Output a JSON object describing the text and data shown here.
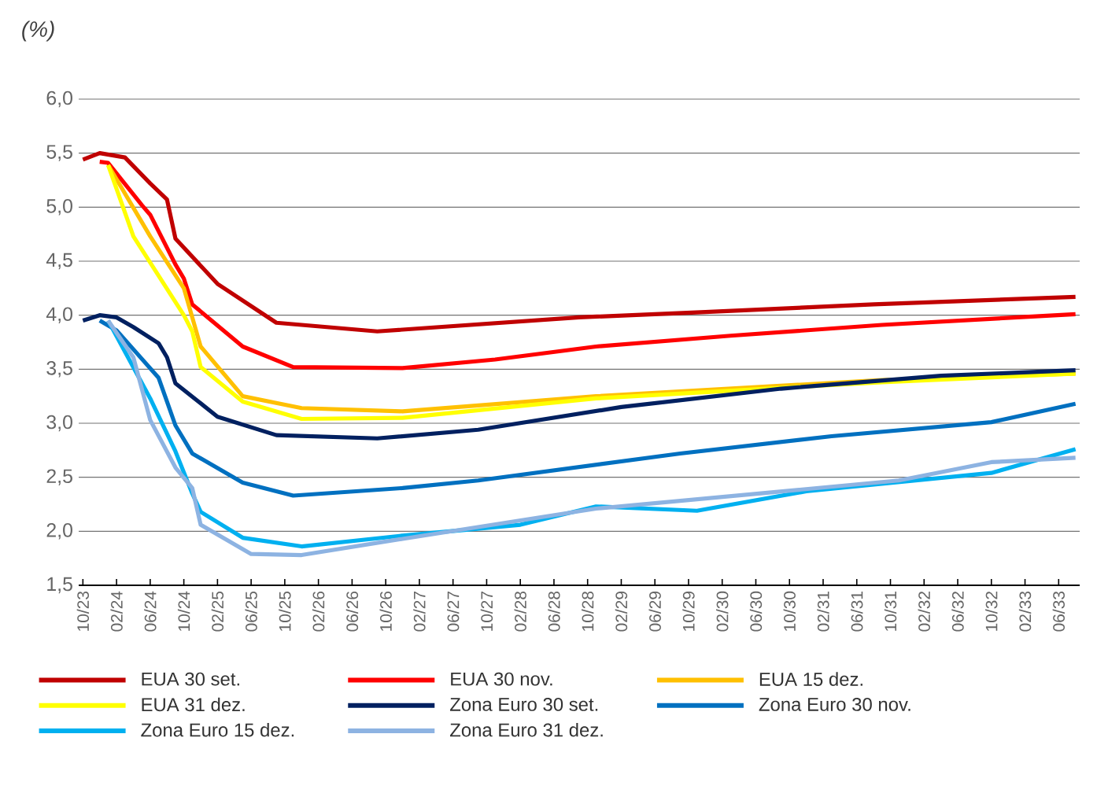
{
  "chart_data": {
    "type": "line",
    "ylabel": "(%)",
    "xlim": [
      "2023-10",
      "2033-08"
    ],
    "xticks": [
      {
        "value": "2023-10",
        "label": "10/23"
      },
      {
        "value": "2024-02",
        "label": "02/24"
      },
      {
        "value": "2024-06",
        "label": "06/24"
      },
      {
        "value": "2024-10",
        "label": "10/24"
      },
      {
        "value": "2025-02",
        "label": "02/25"
      },
      {
        "value": "2025-06",
        "label": "06/25"
      },
      {
        "value": "2025-10",
        "label": "10/25"
      },
      {
        "value": "2026-02",
        "label": "02/26"
      },
      {
        "value": "2026-06",
        "label": "06/26"
      },
      {
        "value": "2026-10",
        "label": "10/26"
      },
      {
        "value": "2027-02",
        "label": "02/27"
      },
      {
        "value": "2027-06",
        "label": "06/27"
      },
      {
        "value": "2027-10",
        "label": "10/27"
      },
      {
        "value": "2028-02",
        "label": "02/28"
      },
      {
        "value": "2028-06",
        "label": "06/28"
      },
      {
        "value": "2028-10",
        "label": "10/28"
      },
      {
        "value": "2029-02",
        "label": "02/29"
      },
      {
        "value": "2029-06",
        "label": "06/29"
      },
      {
        "value": "2029-10",
        "label": "10/29"
      },
      {
        "value": "2030-02",
        "label": "02/30"
      },
      {
        "value": "2030-06",
        "label": "06/30"
      },
      {
        "value": "2030-10",
        "label": "10/30"
      },
      {
        "value": "2031-02",
        "label": "02/31"
      },
      {
        "value": "2031-06",
        "label": "06/31"
      },
      {
        "value": "2031-10",
        "label": "10/31"
      },
      {
        "value": "2032-02",
        "label": "02/32"
      },
      {
        "value": "2032-06",
        "label": "06/32"
      },
      {
        "value": "2032-10",
        "label": "10/32"
      },
      {
        "value": "2033-02",
        "label": "02/33"
      },
      {
        "value": "2033-06",
        "label": "06/33"
      }
    ],
    "ylim": [
      1.5,
      6.0
    ],
    "yticks": [
      {
        "value": 1.5,
        "label": "1,5"
      },
      {
        "value": 2.0,
        "label": "2,0"
      },
      {
        "value": 2.5,
        "label": "2,5"
      },
      {
        "value": 3.0,
        "label": "3,0"
      },
      {
        "value": 3.5,
        "label": "3,5"
      },
      {
        "value": 4.0,
        "label": "4,0"
      },
      {
        "value": 4.5,
        "label": "4,5"
      },
      {
        "value": 5.0,
        "label": "5,0"
      },
      {
        "value": 5.5,
        "label": "5,5"
      },
      {
        "value": 6.0,
        "label": "6,0"
      }
    ],
    "grid": "y",
    "legend": "bottom",
    "series": [
      {
        "name": "EUA 30 set.",
        "color": "#c00000",
        "x": [
          "2023-10",
          "2023-12",
          "2024-03",
          "2024-06",
          "2024-08",
          "2024-09",
          "2025-02",
          "2025-09",
          "2026-09",
          "2028-09",
          "2029-12",
          "2031-08",
          "2033-08"
        ],
        "values": [
          5.44,
          5.5,
          5.46,
          5.22,
          5.07,
          4.71,
          4.29,
          3.93,
          3.85,
          3.98,
          4.03,
          4.1,
          4.17
        ]
      },
      {
        "name": "EUA 30 nov.",
        "color": "#ff0000",
        "x": [
          "2023-12",
          "2024-01",
          "2024-05",
          "2024-06",
          "2024-09",
          "2024-10",
          "2024-11",
          "2025-05",
          "2025-11",
          "2026-12",
          "2027-11",
          "2028-11",
          "2030-03",
          "2031-09",
          "2033-08"
        ],
        "values": [
          5.42,
          5.41,
          5.02,
          4.93,
          4.47,
          4.34,
          4.1,
          3.71,
          3.52,
          3.51,
          3.59,
          3.71,
          3.81,
          3.91,
          4.01
        ]
      },
      {
        "name": "EUA 15 dez.",
        "color": "#ffc000",
        "x": [
          "2024-01",
          "2024-06",
          "2024-10",
          "2024-12",
          "2025-05",
          "2025-12",
          "2026-12",
          "2028-11",
          "2031-09",
          "2033-08"
        ],
        "values": [
          5.39,
          4.73,
          4.25,
          3.71,
          3.25,
          3.14,
          3.11,
          3.25,
          3.4,
          3.46
        ]
      },
      {
        "name": "EUA 31 dez.",
        "color": "#ffff00",
        "x": [
          "2024-01",
          "2024-04",
          "2024-10",
          "2024-11",
          "2024-12",
          "2025-05",
          "2025-12",
          "2026-12",
          "2028-11",
          "2031-09",
          "2033-08"
        ],
        "values": [
          5.39,
          4.73,
          4.0,
          3.85,
          3.52,
          3.2,
          3.04,
          3.05,
          3.23,
          3.38,
          3.46
        ]
      },
      {
        "name": "Zona Euro 30 set.",
        "color": "#002060",
        "x": [
          "2023-10",
          "2023-12",
          "2024-02",
          "2024-04",
          "2024-07",
          "2024-08",
          "2024-09",
          "2025-02",
          "2025-09",
          "2026-09",
          "2027-09",
          "2029-02",
          "2030-09",
          "2032-04",
          "2033-08"
        ],
        "values": [
          3.95,
          4.0,
          3.98,
          3.89,
          3.74,
          3.61,
          3.37,
          3.06,
          2.89,
          2.86,
          2.94,
          3.15,
          3.32,
          3.44,
          3.49
        ]
      },
      {
        "name": "Zona Euro 30 nov.",
        "color": "#0070c0",
        "x": [
          "2023-12",
          "2024-02",
          "2024-07",
          "2024-09",
          "2024-11",
          "2025-05",
          "2025-11",
          "2026-12",
          "2027-09",
          "2029-09",
          "2031-03",
          "2032-10",
          "2033-08"
        ],
        "values": [
          3.95,
          3.86,
          3.42,
          2.98,
          2.72,
          2.45,
          2.33,
          2.4,
          2.47,
          2.72,
          2.88,
          3.01,
          3.18
        ]
      },
      {
        "name": "Zona Euro 15 dez.",
        "color": "#00b0f0",
        "x": [
          "2024-01",
          "2024-06",
          "2024-09",
          "2024-11",
          "2024-12",
          "2025-05",
          "2025-12",
          "2026-12",
          "2028-02",
          "2028-11",
          "2029-11",
          "2030-12",
          "2032-10",
          "2033-08"
        ],
        "values": [
          3.95,
          3.23,
          2.74,
          2.35,
          2.18,
          1.94,
          1.86,
          1.96,
          2.06,
          2.23,
          2.19,
          2.37,
          2.54,
          2.76
        ]
      },
      {
        "name": "Zona Euro 31 dez.",
        "color": "#8db3e2",
        "x": [
          "2024-01",
          "2024-04",
          "2024-06",
          "2024-09",
          "2024-11",
          "2024-12",
          "2025-06",
          "2025-12",
          "2026-12",
          "2028-11",
          "2031-11",
          "2032-10",
          "2033-08"
        ],
        "values": [
          3.95,
          3.61,
          3.03,
          2.59,
          2.4,
          2.06,
          1.79,
          1.78,
          1.93,
          2.21,
          2.47,
          2.64,
          2.68
        ]
      }
    ]
  }
}
